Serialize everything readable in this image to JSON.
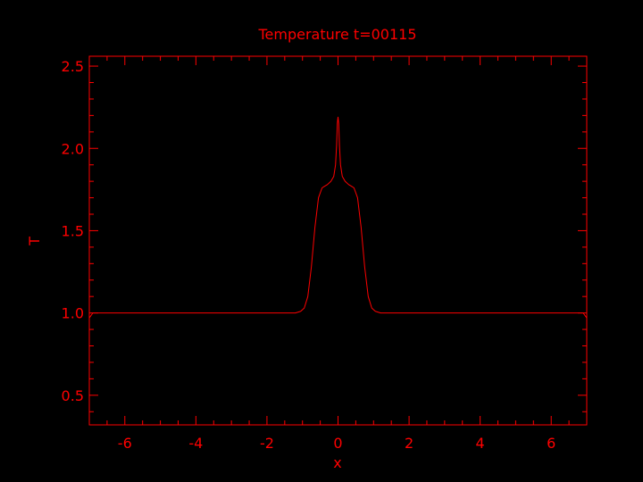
{
  "colors": {
    "background": "#000000",
    "foreground": "#ff0000"
  },
  "chart_data": {
    "type": "line",
    "title": "Temperature t=00115",
    "xlabel": "x",
    "ylabel": "T",
    "xlim": [
      -7.0,
      7.0
    ],
    "ylim": [
      0.32,
      2.56
    ],
    "xticks": [
      -6,
      -4,
      -2,
      0,
      2,
      4,
      6
    ],
    "xtick_labels": [
      "-6",
      "-4",
      "-2",
      "0",
      "2",
      "4",
      "6"
    ],
    "yticks": [
      0.5,
      1.0,
      1.5,
      2.0,
      2.5
    ],
    "ytick_labels": [
      "0.5",
      "1.0",
      "1.5",
      "2.0",
      "2.5"
    ],
    "grid": false,
    "series": [
      {
        "x": [
          -7.0,
          -6.9,
          -6.0,
          -4.0,
          -2.0,
          -1.5,
          -1.2,
          -1.05,
          -0.95,
          -0.85,
          -0.75,
          -0.65,
          -0.55,
          -0.45,
          -0.38,
          -0.3,
          -0.2,
          -0.12,
          -0.07,
          -0.04,
          -0.02,
          0.0,
          0.02,
          0.04,
          0.07,
          0.12,
          0.2,
          0.3,
          0.38,
          0.45,
          0.55,
          0.65,
          0.75,
          0.85,
          0.95,
          1.05,
          1.2,
          1.5,
          2.0,
          4.0,
          6.0,
          6.9,
          7.0
        ],
        "y": [
          0.97,
          1.0,
          1.0,
          1.0,
          1.0,
          1.0,
          1.0,
          1.01,
          1.03,
          1.1,
          1.28,
          1.52,
          1.7,
          1.76,
          1.77,
          1.78,
          1.8,
          1.83,
          1.9,
          2.02,
          2.15,
          2.19,
          2.15,
          2.02,
          1.9,
          1.83,
          1.8,
          1.78,
          1.77,
          1.76,
          1.7,
          1.52,
          1.28,
          1.1,
          1.03,
          1.01,
          1.0,
          1.0,
          1.0,
          1.0,
          1.0,
          1.0,
          0.97
        ]
      }
    ]
  }
}
